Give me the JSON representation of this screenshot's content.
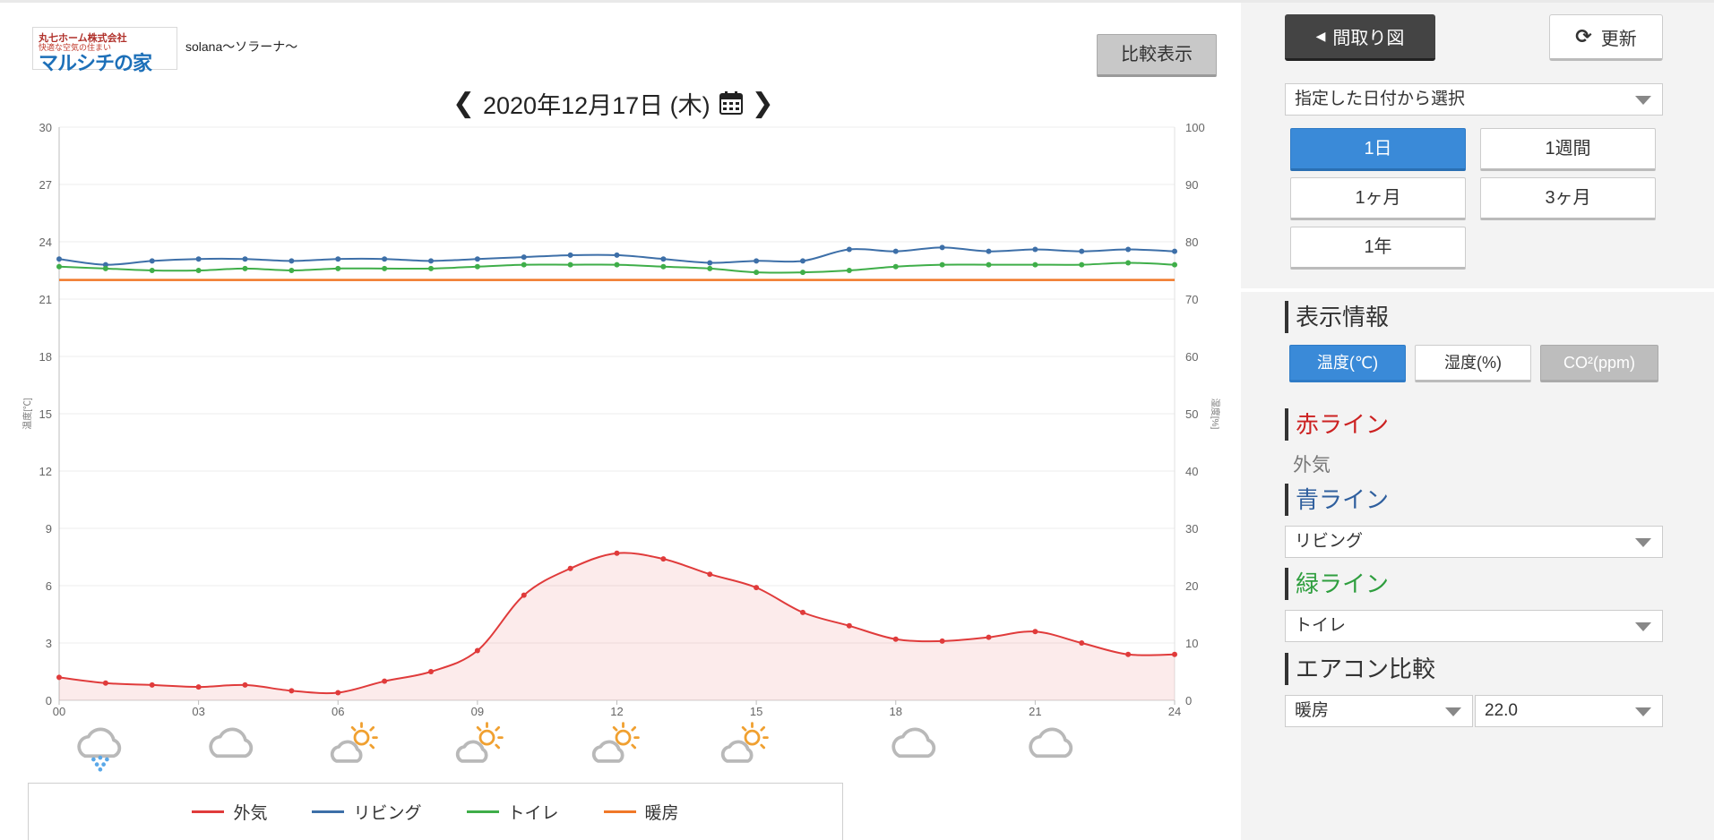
{
  "header": {
    "logo_company": "丸七ホーム株式会社",
    "logo_tagline": "快適な空気の住まい",
    "logo_brand": "マルシチの家",
    "site_name": "solana〜ソラーナ〜",
    "compare_label": "比較表示",
    "date_label": "2020年12月17日 (木)"
  },
  "right": {
    "floorplan_label": "間取り図",
    "refresh_label": "更新",
    "date_select_value": "指定した日付から選択",
    "periods": [
      "1日",
      "1週間",
      "1ヶ月",
      "3ヶ月",
      "1年"
    ],
    "active_period": 0,
    "display_info_title": "表示情報",
    "types": [
      "温度(℃)",
      "湿度(%)",
      "CO²(ppm)"
    ],
    "red_line_title": "赤ライン",
    "red_line_value": "外気",
    "blue_line_title": "青ライン",
    "blue_line_value": "リビング",
    "green_line_title": "緑ライン",
    "green_line_value": "トイレ",
    "aircon_title": "エアコン比較",
    "aircon_mode": "暖房",
    "aircon_temp": "22.0",
    "colors": {
      "red": "#cc2222",
      "blue": "#2f5f9e",
      "green": "#2e9e3e",
      "dark": "#333333"
    }
  },
  "chart_data": {
    "type": "line",
    "x": [
      0,
      1,
      2,
      3,
      4,
      5,
      6,
      7,
      8,
      9,
      10,
      11,
      12,
      13,
      14,
      15,
      16,
      17,
      18,
      19,
      20,
      21,
      22,
      23,
      24
    ],
    "xticks": [
      "00",
      "03",
      "06",
      "09",
      "12",
      "15",
      "18",
      "21",
      "24"
    ],
    "ylim": [
      0,
      30
    ],
    "yticks": [
      0,
      3,
      6,
      9,
      12,
      15,
      18,
      21,
      24,
      27,
      30
    ],
    "ylabel": "温度[℃]",
    "y2lim": [
      0,
      100
    ],
    "y2ticks": [
      0,
      10,
      20,
      30,
      40,
      50,
      60,
      70,
      80,
      90,
      100
    ],
    "y2label": "湿度[%]",
    "grid": true,
    "legend_position": "bottom",
    "series": [
      {
        "name": "外気",
        "color": "#e03b3b",
        "fill": true,
        "values": [
          1.2,
          0.9,
          0.8,
          0.7,
          0.8,
          0.5,
          0.4,
          1.0,
          1.5,
          2.6,
          5.5,
          6.9,
          7.7,
          7.4,
          6.6,
          5.9,
          4.6,
          3.9,
          3.2,
          3.1,
          3.3,
          3.6,
          3.0,
          2.4,
          2.4
        ]
      },
      {
        "name": "リビング",
        "color": "#3d6fa8",
        "fill": false,
        "values": [
          23.1,
          22.8,
          23.0,
          23.1,
          23.1,
          23.0,
          23.1,
          23.1,
          23.0,
          23.1,
          23.2,
          23.3,
          23.3,
          23.1,
          22.9,
          23.0,
          23.0,
          23.6,
          23.5,
          23.7,
          23.5,
          23.6,
          23.5,
          23.6,
          23.5
        ]
      },
      {
        "name": "トイレ",
        "color": "#3fae49",
        "fill": false,
        "values": [
          22.7,
          22.6,
          22.5,
          22.5,
          22.6,
          22.5,
          22.6,
          22.6,
          22.6,
          22.7,
          22.8,
          22.8,
          22.8,
          22.7,
          22.6,
          22.4,
          22.4,
          22.5,
          22.7,
          22.8,
          22.8,
          22.8,
          22.8,
          22.9,
          22.8
        ]
      },
      {
        "name": "暖房",
        "color": "#f07828",
        "fill": false,
        "markers": false,
        "values": [
          22.0,
          22.0,
          22.0,
          22.0,
          22.0,
          22.0,
          22.0,
          22.0,
          22.0,
          22.0,
          22.0,
          22.0,
          22.0,
          22.0,
          22.0,
          22.0,
          22.0,
          22.0,
          22.0,
          22.0,
          22.0,
          22.0,
          22.0,
          22.0,
          22.0
        ]
      }
    ],
    "weather": [
      "snow-cloud-icon",
      "cloud-icon",
      "cloud-sun-icon",
      "cloud-sun-icon",
      "cloud-sun-icon",
      "cloud-sun-icon",
      "cloud-icon",
      "cloud-icon"
    ]
  }
}
